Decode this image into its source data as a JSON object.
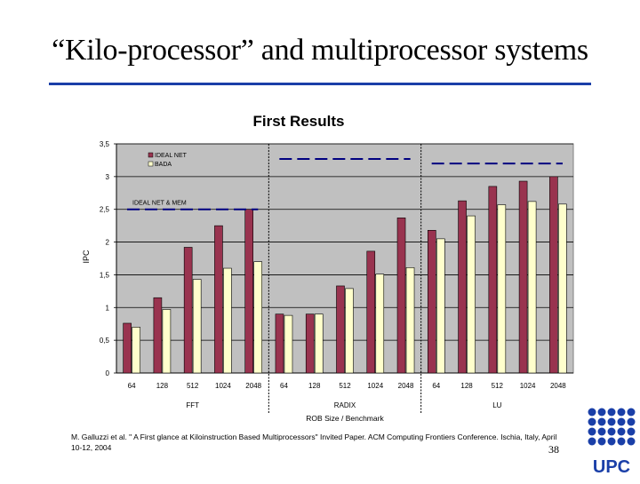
{
  "slide": {
    "title": "“Kilo-processor” and multiprocessor systems",
    "citation": "M. Galluzzi et al. \" A First glance at Kiloinstruction Based Multiprocessors\" Invited Paper. ACM Computing Frontiers Conference. Ischia, Italy, April 10-12, 2004",
    "page_number": "38",
    "logo_text": "UPC",
    "accent_color": "#1a3fa8"
  },
  "chart_data": {
    "type": "bar",
    "title": "First Results",
    "ylabel": "IPC",
    "xlabel": "ROB Size / Benchmark",
    "ylim": [
      0,
      3.5
    ],
    "yticks": [
      "0",
      "0,5",
      "1",
      "1,5",
      "2",
      "2,5",
      "3",
      "3,5"
    ],
    "ytick_values": [
      0,
      0.5,
      1,
      1.5,
      2,
      2.5,
      3,
      3.5
    ],
    "grid": true,
    "legend_position": "top-left",
    "groups": [
      {
        "name": "FFT",
        "categories": [
          "64",
          "128",
          "512",
          "1024",
          "2048"
        ],
        "series": [
          {
            "name": "IDEAL NET",
            "values": [
              0.76,
              1.15,
              1.92,
              2.25,
              2.5
            ]
          },
          {
            "name": "BADA",
            "values": [
              0.7,
              0.97,
              1.43,
              1.6,
              1.7
            ]
          }
        ],
        "reference": {
          "label": "IDEAL NET & MEM",
          "value": 2.5
        }
      },
      {
        "name": "RADIX",
        "categories": [
          "64",
          "128",
          "512",
          "1024",
          "2048"
        ],
        "series": [
          {
            "name": "IDEAL NET",
            "values": [
              0.9,
              0.9,
              1.33,
              1.86,
              2.37
            ]
          },
          {
            "name": "BADA",
            "values": [
              0.88,
              0.9,
              1.29,
              1.51,
              1.61
            ]
          }
        ],
        "reference": {
          "label": "",
          "value": 3.27
        }
      },
      {
        "name": "LU",
        "categories": [
          "64",
          "128",
          "512",
          "1024",
          "2048"
        ],
        "series": [
          {
            "name": "IDEAL NET",
            "values": [
              2.18,
              2.63,
              2.85,
              2.93,
              3.0
            ]
          },
          {
            "name": "BADA",
            "values": [
              2.05,
              2.4,
              2.57,
              2.62,
              2.58
            ]
          }
        ],
        "reference": {
          "label": "",
          "value": 3.2
        }
      }
    ],
    "colors": {
      "ideal_net": "#99334f",
      "bada": "#ffffcc",
      "plot_bg": "#c0c0c0",
      "reference_line": "#000080",
      "separator": "#000000"
    }
  }
}
